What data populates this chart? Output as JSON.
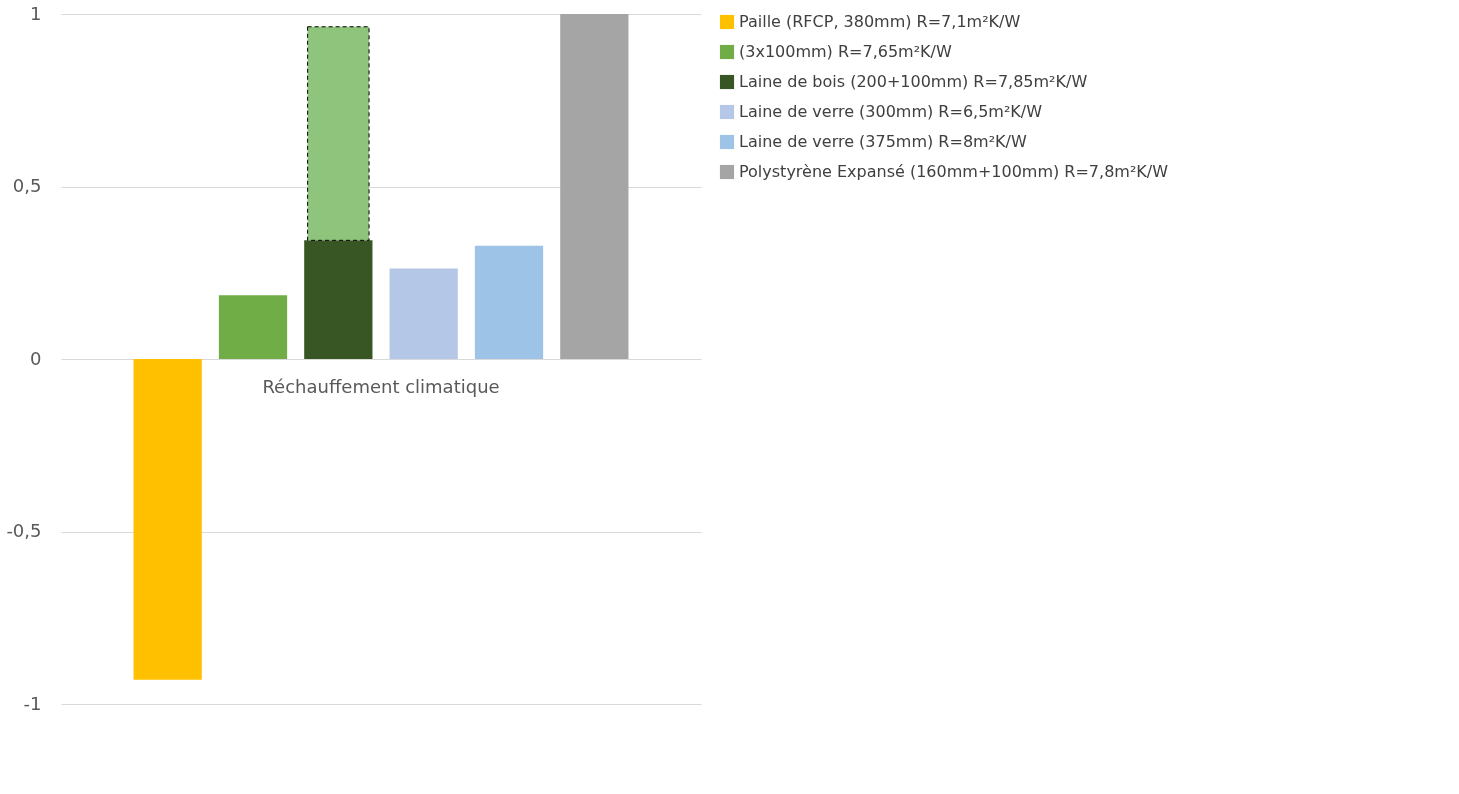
{
  "chart_data": {
    "type": "bar",
    "categories": [
      "Réchauffement climatique"
    ],
    "series": [
      {
        "name": "Paille (RFCP, 380mm) R=7,1m²K/W",
        "color": "#ffc000",
        "values": [
          -0.93
        ]
      },
      {
        "name": "(3x100mm) R=7,65m²K/W",
        "color": "#70ad47",
        "values": [
          0.185
        ]
      },
      {
        "name": "Laine de bois (200+100mm) R=7,85m²K/W",
        "color": "#375623",
        "values": [
          0.344
        ]
      },
      {
        "color": "#8fc47c",
        "values": [
          0.619
        ],
        "base": [
          0.344
        ],
        "line_style": "dashed"
      },
      {
        "name": "Laine de verre (300mm) R=6,5m²K/W",
        "color": "#b4c7e7",
        "values": [
          0.262
        ]
      },
      {
        "name": "Laine de verre (375mm) R=8m²K/W",
        "color": "#9dc3e6",
        "values": [
          0.328
        ]
      },
      {
        "name": "Polystyrène Expansé (160mm+100mm) R=7,8m²K/W",
        "color": "#a5a5a5",
        "values": [
          1.0
        ]
      }
    ],
    "ylim": [
      -1,
      1
    ],
    "yticks": [
      -1,
      {
        "value": -0.5,
        "label": "-0,5"
      },
      0,
      {
        "value": 0.5,
        "label": "0,5"
      },
      1
    ],
    "grid": "y",
    "legend": "right"
  }
}
